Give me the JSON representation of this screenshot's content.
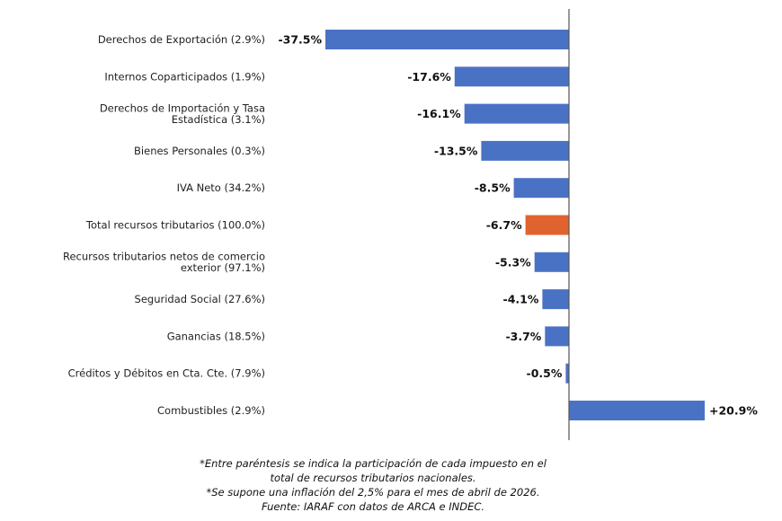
{
  "chart_data": {
    "type": "bar",
    "orientation": "horizontal",
    "categories": [
      "Derechos de Exportación (2.9%)",
      "Internos Coparticipados (1.9%)",
      "Derechos de Importación y Tasa Estadística (3.1%)",
      "Bienes Personales (0.3%)",
      "IVA Neto (34.2%)",
      "Total recursos tributarios (100.0%)",
      "Recursos tributarios netos de comercio exterior (97.1%)",
      "Seguridad Social (27.6%)",
      "Ganancias (18.5%)",
      "Créditos y Débitos en Cta. Cte. (7.9%)",
      "Combustibles (2.9%)"
    ],
    "category_lines": [
      [
        "Derechos de Exportación (2.9%)"
      ],
      [
        "Internos Coparticipados (1.9%)"
      ],
      [
        "Derechos de Importación y Tasa",
        "Estadística (3.1%)"
      ],
      [
        "Bienes Personales (0.3%)"
      ],
      [
        "IVA Neto (34.2%)"
      ],
      [
        "Total recursos tributarios (100.0%)"
      ],
      [
        "Recursos tributarios netos de comercio",
        "exterior (97.1%)"
      ],
      [
        "Seguridad Social (27.6%)"
      ],
      [
        "Ganancias (18.5%)"
      ],
      [
        "Créditos y Débitos en Cta. Cte. (7.9%)"
      ],
      [
        "Combustibles (2.9%)"
      ]
    ],
    "values": [
      -37.5,
      -17.6,
      -16.1,
      -13.5,
      -8.5,
      -6.7,
      -5.3,
      -4.1,
      -3.7,
      -0.5,
      20.9
    ],
    "value_labels": [
      "-37.5%",
      "-17.6%",
      "-16.1%",
      "-13.5%",
      "-8.5%",
      "-6.7%",
      "-5.3%",
      "-4.1%",
      "-3.7%",
      "-0.5%",
      "+20.9%"
    ],
    "highlight_index": 5,
    "colors": {
      "bar": "#4a72c4",
      "highlight": "#e0622e",
      "axis": "#555555"
    },
    "xlim": [
      -37.5,
      20.9
    ],
    "grid": false,
    "legend": "none",
    "title": "",
    "xlabel": "",
    "ylabel": ""
  },
  "notes": [
    "*Entre paréntesis se indica la participación de cada impuesto en el",
    "total de recursos tributarios nacionales.",
    "*Se supone una inflación del 2,5% para el mes de abril de 2026.",
    "Fuente: IARAF con datos de ARCA e INDEC."
  ]
}
